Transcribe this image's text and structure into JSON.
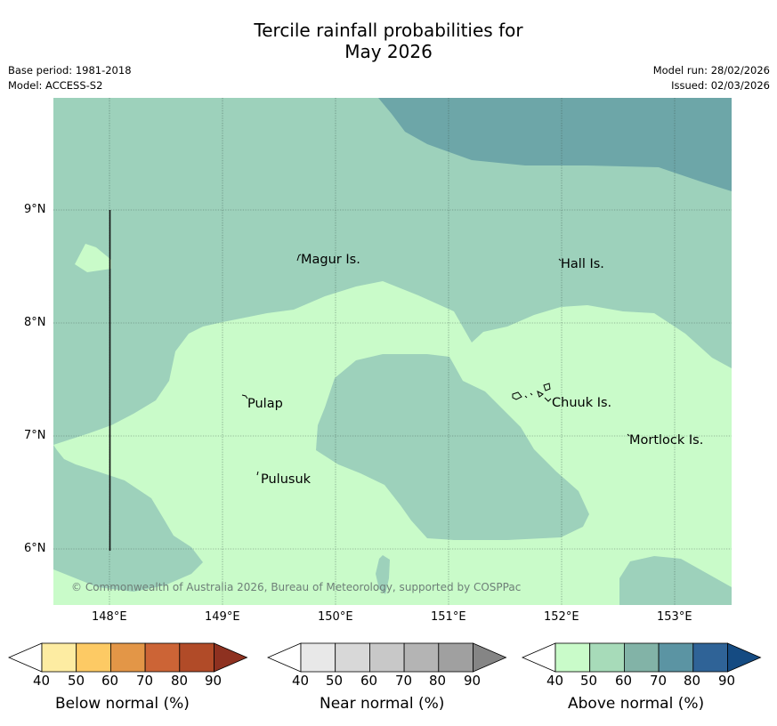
{
  "title": {
    "line1": "Tercile rainfall probabilities for",
    "line2": "May 2026"
  },
  "meta": {
    "base_period": "Base period: 1981-2018",
    "model": "Model: ACCESS-S2",
    "model_run": "Model run: 28/02/2026",
    "issued": "Issued: 02/03/2026"
  },
  "axes": {
    "lat_labels": [
      "9°N",
      "8°N",
      "7°N",
      "6°N"
    ],
    "lon_labels": [
      "148°E",
      "149°E",
      "150°E",
      "151°E",
      "152°E",
      "153°E"
    ]
  },
  "places": {
    "magur": "Magur Is.",
    "hall": "Hall Is.",
    "pulap": "Pulap",
    "chuuk": "Chuuk Is.",
    "mortlock": "Mortlock Is.",
    "pulusuk": "Pulusuk"
  },
  "copyright": "© Commonwealth of Australia 2026, Bureau of Meteorology, supported by COSPPac",
  "colorbars": {
    "below": {
      "title": "Below normal (%)",
      "ticks": [
        "40",
        "50",
        "60",
        "70",
        "80",
        "90"
      ],
      "colors": [
        "#ffffff",
        "#fdeca2",
        "#fdca64",
        "#e39647",
        "#cc6436",
        "#b14b28",
        "#8e3120"
      ]
    },
    "near": {
      "title": "Near normal (%)",
      "ticks": [
        "40",
        "50",
        "60",
        "70",
        "80",
        "90"
      ],
      "colors": [
        "#ffffff",
        "#e8e8e8",
        "#d8d8d8",
        "#c8c8c8",
        "#b4b4b4",
        "#a0a0a0",
        "#858585"
      ]
    },
    "above": {
      "title": "Above normal (%)",
      "ticks": [
        "40",
        "50",
        "60",
        "70",
        "80",
        "90"
      ],
      "colors": [
        "#ffffff",
        "#c9fbc9",
        "#a7dbb9",
        "#82b3a7",
        "#5b94a3",
        "#2f6397",
        "#154b82"
      ]
    }
  },
  "map_colors": {
    "above_40_50": "#c9fbc9",
    "above_50_60": "#9dd1bb",
    "above_60_70": "#6da6a8"
  }
}
